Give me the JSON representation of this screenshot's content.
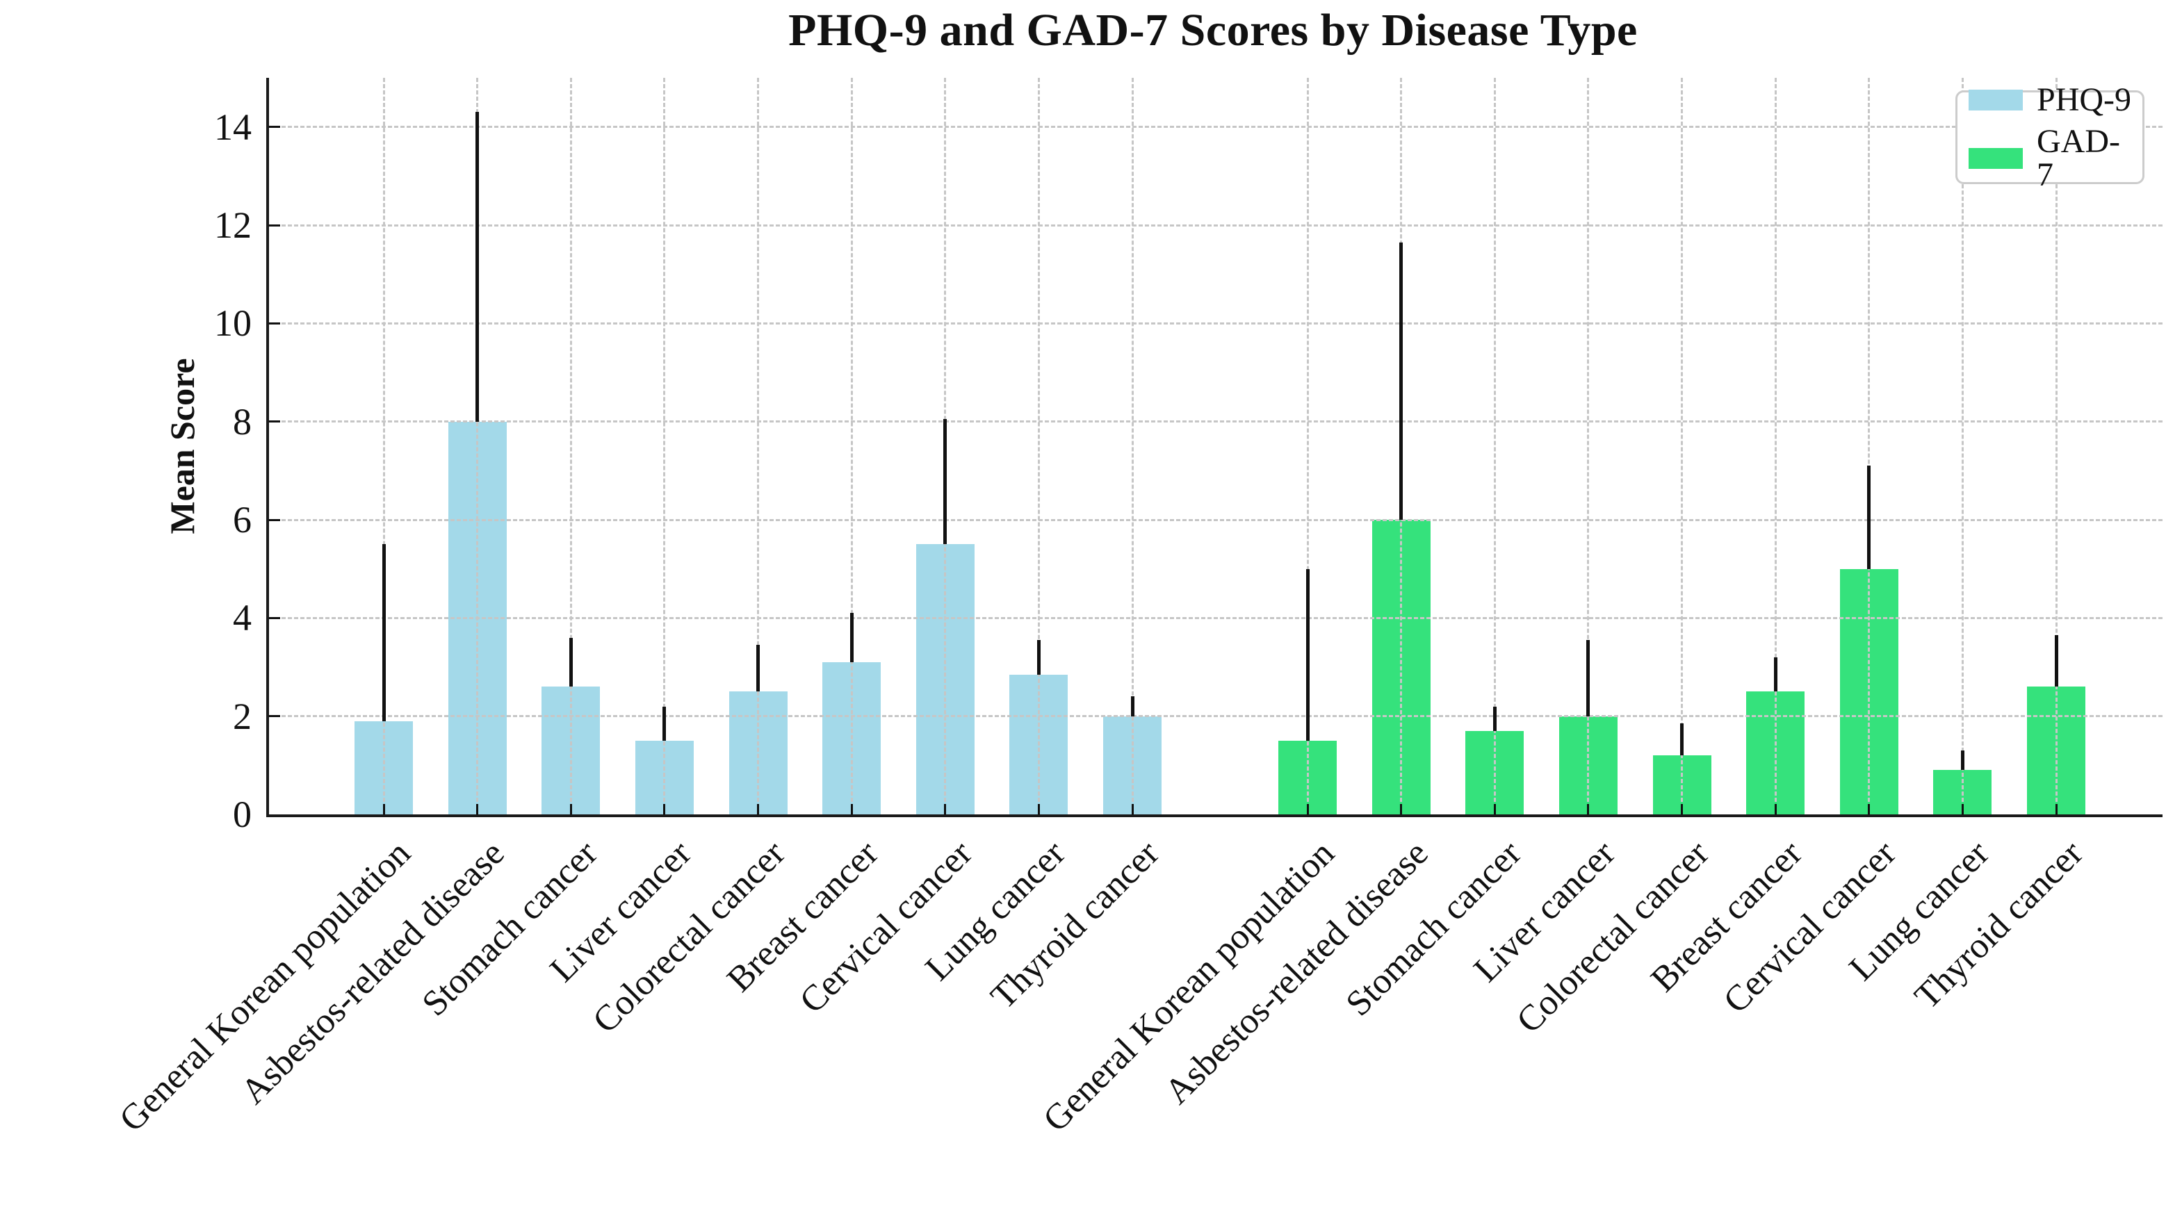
{
  "title": "PHQ-9 and GAD-7 Scores by Disease Type",
  "ylabel": "Mean Score",
  "chart_data": {
    "type": "bar",
    "title": "PHQ-9 and GAD-7 Scores by Disease Type",
    "ylabel": "Mean Score",
    "xlabel": "",
    "ylim": [
      0,
      15
    ],
    "yticks": [
      0,
      2,
      4,
      6,
      8,
      10,
      12,
      14
    ],
    "grid": {
      "style": "dashed",
      "horizontal": true,
      "vertical": true,
      "color": "#c6c6c6",
      "drawn_over_bars": true
    },
    "legend_position": "upper right",
    "error_bars": "upper only, no caps, black",
    "categories": [
      "General Korean population",
      "Asbestos-related disease",
      "Stomach cancer",
      "Liver cancer",
      "Colorectal cancer",
      "Breast cancer",
      "Cervical cancer",
      "Lung cancer",
      "Thyroid cancer"
    ],
    "series": [
      {
        "name": "PHQ-9",
        "color": "#a3d9e9",
        "values": [
          1.9,
          8.0,
          2.6,
          1.5,
          2.5,
          3.1,
          5.5,
          2.85,
          2.0
        ],
        "upper_errors": [
          3.6,
          6.3,
          1.0,
          0.7,
          0.95,
          1.0,
          2.55,
          0.7,
          0.4
        ]
      },
      {
        "name": "GAD-7",
        "color": "#35e27c",
        "values": [
          1.5,
          6.0,
          1.7,
          2.0,
          1.2,
          2.5,
          5.0,
          0.9,
          2.6
        ],
        "upper_errors": [
          3.5,
          5.65,
          0.5,
          1.55,
          0.65,
          0.7,
          2.1,
          0.4,
          1.05
        ]
      }
    ],
    "colors": {
      "axis": "#1a1a1a",
      "grid": "#c6c6c6",
      "error_bar": "#111111",
      "text": "#111111"
    }
  },
  "legend": {
    "items": [
      {
        "label": "PHQ-9",
        "color": "#a3d9e9"
      },
      {
        "label": "GAD-7",
        "color": "#35e27c"
      }
    ]
  }
}
